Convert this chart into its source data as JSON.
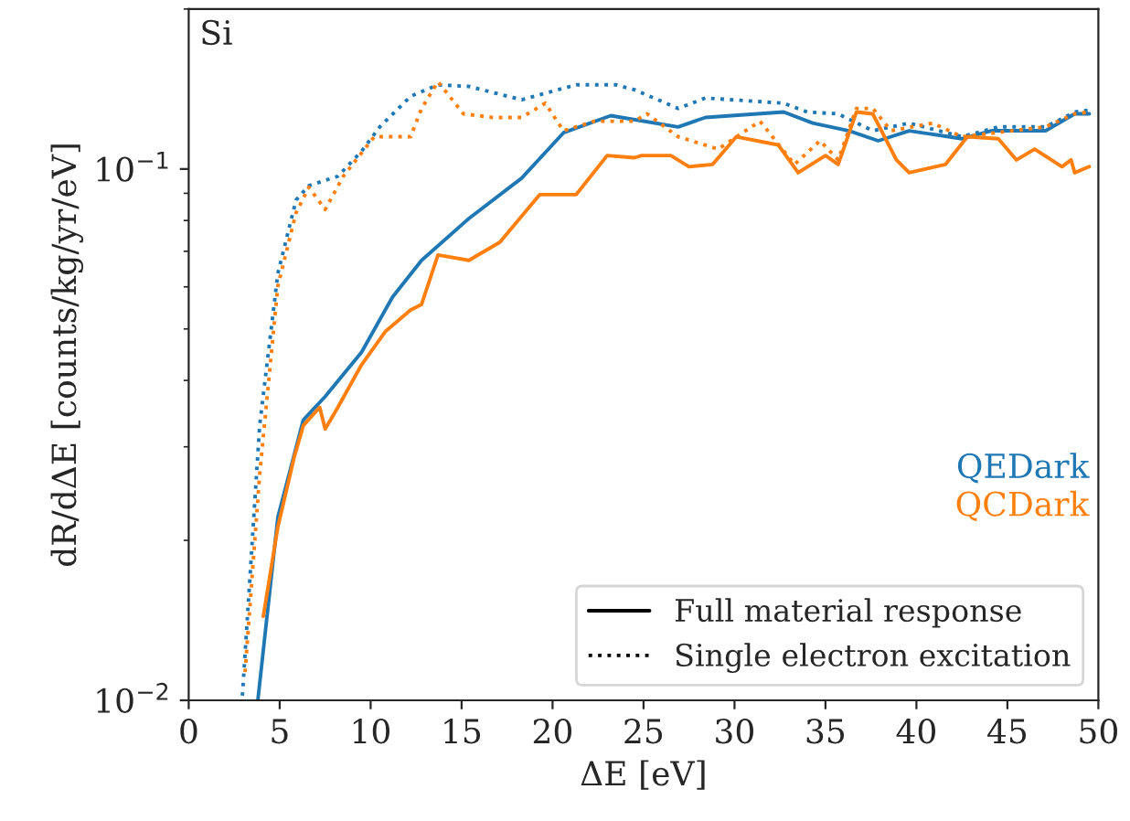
{
  "chart_data": {
    "type": "line",
    "xlabel": "ΔE [eV]",
    "ylabel": "dR/dΔE [counts/kg/yr/eV]",
    "log": "y",
    "grid": false,
    "legend": "bottom right",
    "xlim": [
      0,
      50
    ],
    "xticks": [
      0,
      5,
      10,
      15,
      20,
      25,
      30,
      35,
      40,
      45,
      50
    ],
    "ylim": [
      0.01,
      0.2
    ],
    "yticks": [
      {
        "value": 0.01,
        "label": "10$^{−2}$"
      },
      {
        "value": 0.1,
        "label": "10$^{−1}$"
      }
    ],
    "annotations": [
      "Si",
      "Full material response",
      "Single electron excitation"
    ],
    "series": [
      {
        "name": "QEDark",
        "color": "#1f77b4",
        "line_style": "solid",
        "x": [
          3.8,
          4.9,
          6.3,
          7.5,
          9.5,
          11.2,
          12.8,
          15.4,
          18.3,
          20.6,
          23.2,
          26.9,
          28.4,
          32.7,
          34.3,
          36.3,
          37.9,
          39.6,
          42.5,
          44.1,
          47.1,
          48.7,
          49.5
        ],
        "values": [
          0.01,
          0.0221,
          0.0337,
          0.0373,
          0.0452,
          0.0574,
          0.0673,
          0.0807,
          0.0961,
          0.117,
          0.126,
          0.12,
          0.125,
          0.128,
          0.122,
          0.118,
          0.113,
          0.118,
          0.114,
          0.118,
          0.118,
          0.127,
          0.127
        ]
      },
      {
        "color": "#1f77b4",
        "line_style": "dotted",
        "x": [
          2.95,
          3.9,
          4.9,
          5.9,
          6.6,
          8.2,
          9.5,
          10.5,
          12.2,
          13.7,
          15.4,
          18.3,
          21.3,
          23.5,
          24.5,
          26.9,
          28.4,
          32.7,
          34.0,
          35.7,
          37.6,
          39.6,
          42.5,
          44.5,
          47.1,
          48.7,
          49.5
        ],
        "values": [
          0.0102,
          0.0329,
          0.0636,
          0.0874,
          0.093,
          0.0969,
          0.108,
          0.12,
          0.137,
          0.144,
          0.143,
          0.135,
          0.144,
          0.144,
          0.141,
          0.13,
          0.136,
          0.133,
          0.128,
          0.127,
          0.118,
          0.122,
          0.115,
          0.12,
          0.12,
          0.128,
          0.129
        ]
      },
      {
        "name": "QCDark",
        "color": "#ff7f0e",
        "line_style": "solid",
        "x": [
          4.1,
          4.9,
          5.8,
          6.3,
          7.2,
          7.5,
          8.2,
          9.5,
          10.8,
          12.2,
          12.8,
          13.7,
          15.4,
          17.1,
          19.3,
          21.3,
          23.0,
          24.5,
          24.9,
          26.5,
          27.5,
          28.8,
          30.1,
          32.4,
          33.5,
          35.0,
          35.7,
          36.7,
          37.6,
          38.9,
          39.6,
          41.6,
          42.8,
          44.5,
          45.5,
          46.5,
          48.0,
          48.5,
          48.7,
          49.5
        ],
        "values": [
          0.0144,
          0.0212,
          0.0287,
          0.0329,
          0.0356,
          0.0324,
          0.0356,
          0.0428,
          0.0494,
          0.0543,
          0.0556,
          0.0689,
          0.0673,
          0.0728,
          0.0895,
          0.0895,
          0.106,
          0.105,
          0.106,
          0.106,
          0.101,
          0.102,
          0.115,
          0.111,
          0.0984,
          0.106,
          0.102,
          0.128,
          0.127,
          0.104,
          0.0984,
          0.102,
          0.115,
          0.114,
          0.104,
          0.109,
          0.101,
          0.104,
          0.0984,
          0.101
        ]
      },
      {
        "color": "#ff7f0e",
        "line_style": "dotted",
        "x": [
          3.1,
          3.9,
          4.9,
          5.9,
          6.6,
          7.5,
          8.5,
          10.2,
          12.2,
          12.8,
          13.7,
          15.1,
          16.7,
          18.3,
          19.6,
          20.6,
          22.3,
          24.5,
          25.2,
          26.9,
          29.1,
          31.4,
          33.3,
          34.7,
          35.7,
          36.7,
          37.6,
          38.6,
          40.9,
          42.5,
          47.1,
          48.7,
          49.5
        ],
        "values": [
          0.0113,
          0.0266,
          0.0602,
          0.0827,
          0.0924,
          0.0839,
          0.0969,
          0.115,
          0.115,
          0.13,
          0.146,
          0.127,
          0.125,
          0.125,
          0.133,
          0.118,
          0.123,
          0.123,
          0.127,
          0.115,
          0.109,
          0.123,
          0.102,
          0.113,
          0.104,
          0.13,
          0.13,
          0.118,
          0.122,
          0.115,
          0.12,
          0.127,
          0.128
        ]
      }
    ]
  }
}
